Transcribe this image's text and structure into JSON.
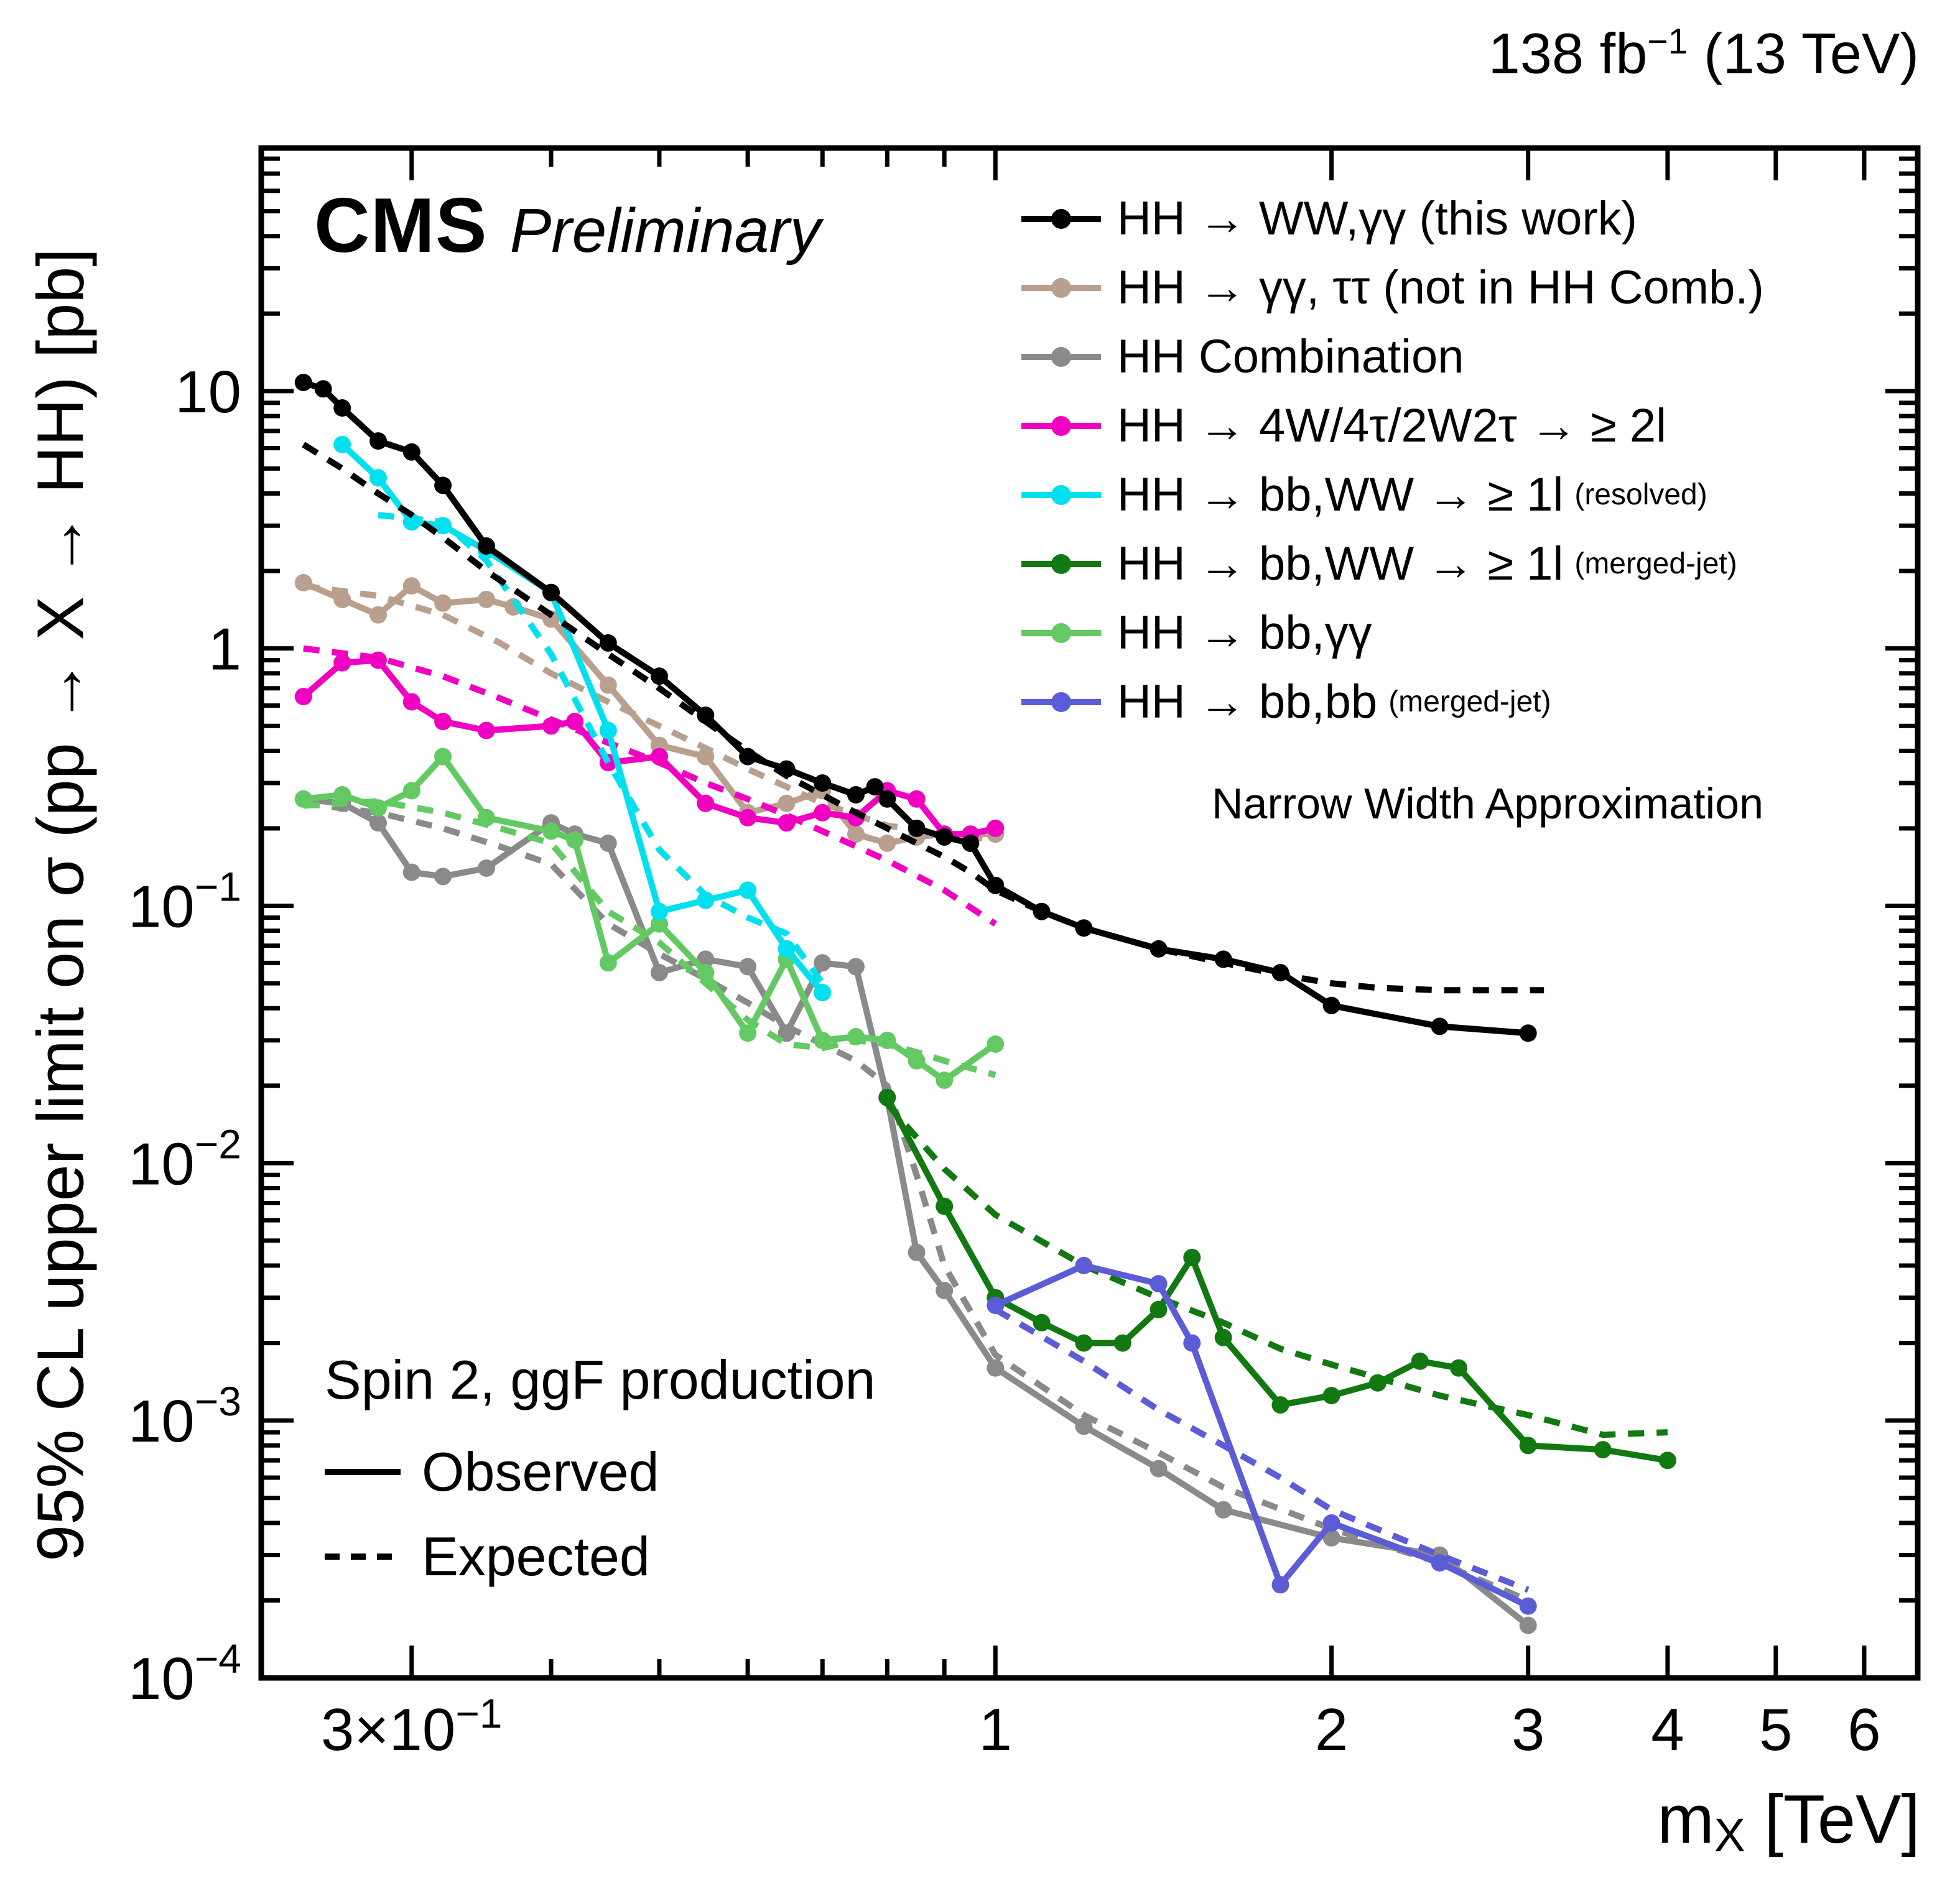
{
  "header": {
    "experiment": "CMS",
    "label": "Preliminary",
    "lumi": {
      "pre": "138 fb",
      "sup": "−1",
      "post": " (13 TeV)"
    }
  },
  "annotations": {
    "narrow_width": "Narrow Width Approximation",
    "spin": "Spin 2, ggF production",
    "observed": "Observed",
    "expected": "Expected"
  },
  "chart_data": {
    "type": "line",
    "xscale": "log",
    "yscale": "log",
    "title": "",
    "x_axis": {
      "title_pre": "m",
      "title_sub": "X",
      "title_post": " [TeV]",
      "min": 0.22,
      "max": 6.7,
      "major_ticks": [
        {
          "v": 0.3,
          "base": "3×10",
          "exp": "−1"
        },
        {
          "v": 1,
          "base": "1"
        },
        {
          "v": 2,
          "base": "2"
        },
        {
          "v": 3,
          "base": "3"
        },
        {
          "v": 4,
          "base": "4"
        },
        {
          "v": 5,
          "base": "5"
        },
        {
          "v": 6,
          "base": "6"
        }
      ],
      "minor_ticks": [
        0.4,
        0.5,
        0.6,
        0.7,
        0.8,
        0.9
      ]
    },
    "y_axis": {
      "title": "95% CL upper limit on σ (pp → X → HH) [pb]",
      "min": 0.0001,
      "max": 88,
      "major_ticks": [
        {
          "v": 0.0001,
          "base": "10",
          "exp": "−4"
        },
        {
          "v": 0.001,
          "base": "10",
          "exp": "−3"
        },
        {
          "v": 0.01,
          "base": "10",
          "exp": "−2"
        },
        {
          "v": 0.1,
          "base": "10",
          "exp": "−1"
        },
        {
          "v": 1,
          "base": "1"
        },
        {
          "v": 10,
          "base": "10"
        }
      ]
    },
    "legend_position": "top-right",
    "series": [
      {
        "name": "HH → WW,γγ (this work)",
        "note": "",
        "color": "#000000",
        "observed": [
          [
            0.24,
            10.8
          ],
          [
            0.25,
            10.2
          ],
          [
            0.26,
            8.6
          ],
          [
            0.28,
            6.4
          ],
          [
            0.3,
            5.8
          ],
          [
            0.32,
            4.3
          ],
          [
            0.35,
            2.5
          ],
          [
            0.4,
            1.65
          ],
          [
            0.45,
            1.05
          ],
          [
            0.5,
            0.78
          ],
          [
            0.55,
            0.55
          ],
          [
            0.6,
            0.38
          ],
          [
            0.65,
            0.34
          ],
          [
            0.7,
            0.3
          ],
          [
            0.75,
            0.27
          ],
          [
            0.78,
            0.29
          ],
          [
            0.8,
            0.26
          ],
          [
            0.85,
            0.2
          ],
          [
            0.9,
            0.185
          ],
          [
            0.95,
            0.175
          ],
          [
            1.0,
            0.12
          ],
          [
            1.1,
            0.095
          ],
          [
            1.2,
            0.082
          ],
          [
            1.4,
            0.068
          ],
          [
            1.6,
            0.062
          ],
          [
            1.8,
            0.055
          ],
          [
            2.0,
            0.041
          ],
          [
            2.5,
            0.034
          ],
          [
            3.0,
            0.032
          ]
        ],
        "expected": [
          [
            0.24,
            6.2
          ],
          [
            0.26,
            5.0
          ],
          [
            0.28,
            4.0
          ],
          [
            0.3,
            3.3
          ],
          [
            0.32,
            2.7
          ],
          [
            0.35,
            2.0
          ],
          [
            0.4,
            1.35
          ],
          [
            0.45,
            0.95
          ],
          [
            0.5,
            0.7
          ],
          [
            0.55,
            0.52
          ],
          [
            0.6,
            0.4
          ],
          [
            0.65,
            0.32
          ],
          [
            0.7,
            0.27
          ],
          [
            0.75,
            0.23
          ],
          [
            0.8,
            0.2
          ],
          [
            0.85,
            0.175
          ],
          [
            0.9,
            0.155
          ],
          [
            0.95,
            0.135
          ],
          [
            1.0,
            0.115
          ],
          [
            1.1,
            0.095
          ],
          [
            1.2,
            0.082
          ],
          [
            1.4,
            0.068
          ],
          [
            1.6,
            0.06
          ],
          [
            1.8,
            0.054
          ],
          [
            2.0,
            0.05
          ],
          [
            2.2,
            0.048
          ],
          [
            2.5,
            0.047
          ],
          [
            3.0,
            0.047
          ],
          [
            3.1,
            0.047
          ]
        ]
      },
      {
        "name": "HH → γγ, ττ (not in HH Comb.)",
        "note": "",
        "color": "#b9a08e",
        "observed": [
          [
            0.24,
            1.8
          ],
          [
            0.26,
            1.55
          ],
          [
            0.28,
            1.35
          ],
          [
            0.3,
            1.75
          ],
          [
            0.32,
            1.5
          ],
          [
            0.35,
            1.55
          ],
          [
            0.37,
            1.45
          ],
          [
            0.4,
            1.3
          ],
          [
            0.45,
            0.72
          ],
          [
            0.5,
            0.42
          ],
          [
            0.55,
            0.38
          ],
          [
            0.6,
            0.23
          ],
          [
            0.65,
            0.25
          ],
          [
            0.7,
            0.28
          ],
          [
            0.75,
            0.19
          ],
          [
            0.8,
            0.175
          ],
          [
            0.85,
            0.185
          ],
          [
            0.9,
            0.19
          ],
          [
            1.0,
            0.19
          ]
        ],
        "expected": [
          [
            0.24,
            1.75
          ],
          [
            0.28,
            1.6
          ],
          [
            0.32,
            1.35
          ],
          [
            0.36,
            1.05
          ],
          [
            0.4,
            0.8
          ],
          [
            0.45,
            0.62
          ],
          [
            0.5,
            0.5
          ],
          [
            0.55,
            0.41
          ],
          [
            0.6,
            0.34
          ],
          [
            0.65,
            0.29
          ],
          [
            0.7,
            0.25
          ],
          [
            0.8,
            0.205
          ],
          [
            0.9,
            0.19
          ],
          [
            1.0,
            0.18
          ]
        ]
      },
      {
        "name": "HH Combination",
        "note": "",
        "color": "#8a8a8a",
        "observed": [
          [
            0.24,
            0.26
          ],
          [
            0.26,
            0.25
          ],
          [
            0.28,
            0.21
          ],
          [
            0.3,
            0.135
          ],
          [
            0.32,
            0.13
          ],
          [
            0.35,
            0.14
          ],
          [
            0.4,
            0.21
          ],
          [
            0.42,
            0.19
          ],
          [
            0.45,
            0.175
          ],
          [
            0.5,
            0.055
          ],
          [
            0.55,
            0.062
          ],
          [
            0.6,
            0.058
          ],
          [
            0.65,
            0.032
          ],
          [
            0.7,
            0.06
          ],
          [
            0.75,
            0.058
          ],
          [
            0.8,
            0.018
          ],
          [
            0.85,
            0.0045
          ],
          [
            0.9,
            0.0032
          ],
          [
            1.0,
            0.0016
          ],
          [
            1.2,
            0.00095
          ],
          [
            1.4,
            0.00065
          ],
          [
            1.6,
            0.00045
          ],
          [
            2.0,
            0.00035
          ],
          [
            2.5,
            0.0003
          ],
          [
            3.0,
            0.00016
          ]
        ],
        "expected": [
          [
            0.24,
            0.25
          ],
          [
            0.28,
            0.23
          ],
          [
            0.32,
            0.2
          ],
          [
            0.36,
            0.17
          ],
          [
            0.4,
            0.145
          ],
          [
            0.45,
            0.085
          ],
          [
            0.5,
            0.065
          ],
          [
            0.55,
            0.052
          ],
          [
            0.6,
            0.042
          ],
          [
            0.65,
            0.034
          ],
          [
            0.7,
            0.029
          ],
          [
            0.75,
            0.025
          ],
          [
            0.8,
            0.02
          ],
          [
            0.85,
            0.009
          ],
          [
            0.9,
            0.004
          ],
          [
            1.0,
            0.0018
          ],
          [
            1.2,
            0.00105
          ],
          [
            1.4,
            0.00075
          ],
          [
            1.6,
            0.00055
          ],
          [
            2.0,
            0.00038
          ],
          [
            2.5,
            0.00028
          ],
          [
            3.0,
            0.0002
          ]
        ]
      },
      {
        "name": "HH → 4W/4τ/2W2τ → ≥ 2l",
        "note": "",
        "color": "#f000c0",
        "observed": [
          [
            0.24,
            0.65
          ],
          [
            0.26,
            0.88
          ],
          [
            0.28,
            0.9
          ],
          [
            0.3,
            0.62
          ],
          [
            0.32,
            0.52
          ],
          [
            0.35,
            0.48
          ],
          [
            0.4,
            0.5
          ],
          [
            0.42,
            0.52
          ],
          [
            0.45,
            0.36
          ],
          [
            0.5,
            0.38
          ],
          [
            0.55,
            0.25
          ],
          [
            0.6,
            0.22
          ],
          [
            0.65,
            0.21
          ],
          [
            0.7,
            0.23
          ],
          [
            0.75,
            0.22
          ],
          [
            0.8,
            0.28
          ],
          [
            0.85,
            0.26
          ],
          [
            0.9,
            0.19
          ],
          [
            0.95,
            0.19
          ],
          [
            1.0,
            0.2
          ]
        ],
        "expected": [
          [
            0.24,
            1.0
          ],
          [
            0.28,
            0.92
          ],
          [
            0.32,
            0.78
          ],
          [
            0.36,
            0.64
          ],
          [
            0.4,
            0.53
          ],
          [
            0.45,
            0.43
          ],
          [
            0.5,
            0.36
          ],
          [
            0.55,
            0.3
          ],
          [
            0.6,
            0.26
          ],
          [
            0.65,
            0.225
          ],
          [
            0.7,
            0.195
          ],
          [
            0.8,
            0.15
          ],
          [
            0.9,
            0.115
          ],
          [
            1.0,
            0.085
          ]
        ]
      },
      {
        "name": "HH → bb,WW → ≥ 1l",
        "note": "(resolved)",
        "color": "#00e0ee",
        "observed": [
          [
            0.26,
            6.2
          ],
          [
            0.28,
            4.6
          ],
          [
            0.3,
            3.1
          ],
          [
            0.32,
            3.0
          ],
          [
            0.35,
            2.4
          ],
          [
            0.4,
            1.65
          ],
          [
            0.45,
            0.48
          ],
          [
            0.5,
            0.095
          ],
          [
            0.55,
            0.105
          ],
          [
            0.6,
            0.115
          ],
          [
            0.65,
            0.068
          ],
          [
            0.7,
            0.046
          ]
        ],
        "expected": [
          [
            0.28,
            3.3
          ],
          [
            0.32,
            3.1
          ],
          [
            0.35,
            2.2
          ],
          [
            0.4,
            0.95
          ],
          [
            0.45,
            0.36
          ],
          [
            0.5,
            0.165
          ],
          [
            0.55,
            0.11
          ],
          [
            0.6,
            0.09
          ],
          [
            0.65,
            0.078
          ],
          [
            0.7,
            0.05
          ]
        ]
      },
      {
        "name": "HH → bb,WW → ≥ 1l",
        "note": "(merged-jet)",
        "color": "#127812",
        "observed": [
          [
            0.8,
            0.018
          ],
          [
            0.9,
            0.0068
          ],
          [
            1.0,
            0.003
          ],
          [
            1.1,
            0.0024
          ],
          [
            1.2,
            0.002
          ],
          [
            1.3,
            0.002
          ],
          [
            1.4,
            0.0027
          ],
          [
            1.5,
            0.0043
          ],
          [
            1.6,
            0.0021
          ],
          [
            1.8,
            0.00115
          ],
          [
            2.0,
            0.00125
          ],
          [
            2.2,
            0.0014
          ],
          [
            2.4,
            0.0017
          ],
          [
            2.6,
            0.0016
          ],
          [
            3.0,
            0.0008
          ],
          [
            3.5,
            0.00077
          ],
          [
            4.0,
            0.0007
          ]
        ],
        "expected": [
          [
            0.8,
            0.017
          ],
          [
            0.9,
            0.0095
          ],
          [
            1.0,
            0.0063
          ],
          [
            1.2,
            0.004
          ],
          [
            1.4,
            0.003
          ],
          [
            1.6,
            0.0024
          ],
          [
            1.8,
            0.0019
          ],
          [
            2.0,
            0.00165
          ],
          [
            2.5,
            0.00125
          ],
          [
            3.0,
            0.00105
          ],
          [
            3.5,
            0.00088
          ],
          [
            4.0,
            0.0009
          ]
        ]
      },
      {
        "name": "HH → bb,γγ",
        "note": "",
        "color": "#63c963",
        "observed": [
          [
            0.24,
            0.26
          ],
          [
            0.26,
            0.27
          ],
          [
            0.28,
            0.24
          ],
          [
            0.3,
            0.28
          ],
          [
            0.32,
            0.38
          ],
          [
            0.35,
            0.22
          ],
          [
            0.4,
            0.195
          ],
          [
            0.42,
            0.18
          ],
          [
            0.45,
            0.06
          ],
          [
            0.5,
            0.085
          ],
          [
            0.55,
            0.055
          ],
          [
            0.6,
            0.032
          ],
          [
            0.65,
            0.062
          ],
          [
            0.7,
            0.03
          ],
          [
            0.75,
            0.031
          ],
          [
            0.8,
            0.03
          ],
          [
            0.85,
            0.025
          ],
          [
            0.9,
            0.021
          ],
          [
            1.0,
            0.029
          ]
        ],
        "expected": [
          [
            0.24,
            0.245
          ],
          [
            0.28,
            0.255
          ],
          [
            0.32,
            0.23
          ],
          [
            0.36,
            0.2
          ],
          [
            0.4,
            0.175
          ],
          [
            0.45,
            0.095
          ],
          [
            0.5,
            0.072
          ],
          [
            0.55,
            0.05
          ],
          [
            0.6,
            0.036
          ],
          [
            0.65,
            0.029
          ],
          [
            0.7,
            0.028
          ],
          [
            0.75,
            0.03
          ],
          [
            0.8,
            0.029
          ],
          [
            0.85,
            0.027
          ],
          [
            0.9,
            0.025
          ],
          [
            1.0,
            0.022
          ]
        ]
      },
      {
        "name": "HH → bb,bb",
        "note": "(merged-jet)",
        "color": "#5c5cd6",
        "observed": [
          [
            1.0,
            0.0028
          ],
          [
            1.2,
            0.004
          ],
          [
            1.4,
            0.0034
          ],
          [
            1.5,
            0.002
          ],
          [
            1.8,
            0.00023
          ],
          [
            2.0,
            0.0004
          ],
          [
            2.5,
            0.00028
          ],
          [
            3.0,
            0.00019
          ]
        ],
        "expected": [
          [
            1.0,
            0.0027
          ],
          [
            1.2,
            0.0017
          ],
          [
            1.4,
            0.0011
          ],
          [
            1.6,
            0.0008
          ],
          [
            1.8,
            0.0006
          ],
          [
            2.0,
            0.00045
          ],
          [
            2.5,
            0.0003
          ],
          [
            3.0,
            0.00022
          ]
        ]
      }
    ]
  }
}
